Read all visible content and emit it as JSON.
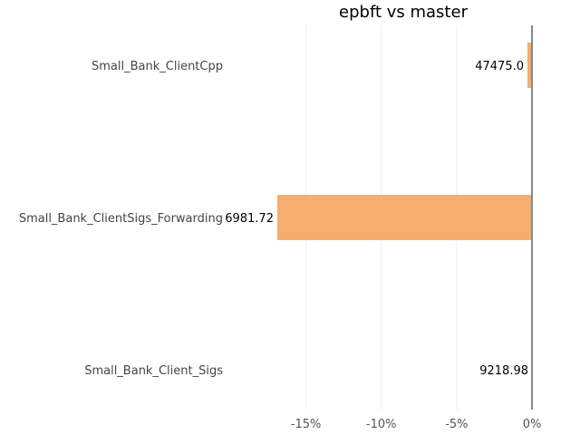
{
  "chart_data": {
    "type": "bar",
    "orientation": "horizontal",
    "title": "epbft vs master",
    "xlabel": "",
    "ylabel": "",
    "categories": [
      "Small_Bank_ClientCpp",
      "Small_Bank_ClientSigs_Forwarding",
      "Small_Bank_Client_Sigs"
    ],
    "values": [
      -0.3,
      -16.9,
      0.0
    ],
    "data_labels": [
      "47475.0",
      "6981.72",
      "9218.98"
    ],
    "xlim": [
      -17.5,
      0
    ],
    "x_ticks": [
      -15,
      -10,
      -5,
      0
    ],
    "x_tick_labels": [
      "-15%",
      "-10%",
      "-5%",
      "0%"
    ],
    "bar_color": "#f5ae70",
    "grid": true,
    "legend": "none"
  }
}
